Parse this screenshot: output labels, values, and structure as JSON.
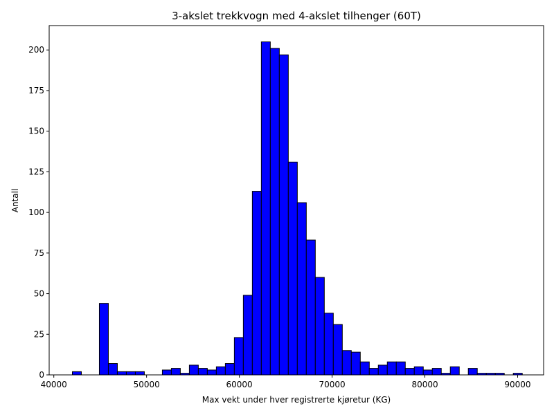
{
  "chart_data": {
    "type": "bar",
    "title": "3-akslet trekkvogn med 4-akslet tilhenger (60T)",
    "xlabel": "Max vekt under hver registrerte kjøretur (KG)",
    "ylabel": "Antall",
    "xlim": [
      39500,
      92800
    ],
    "ylim": [
      0,
      215
    ],
    "x_ticks": [
      40000,
      50000,
      60000,
      70000,
      80000,
      90000
    ],
    "y_ticks": [
      0,
      25,
      50,
      75,
      100,
      125,
      150,
      175,
      200
    ],
    "bin_width": 970,
    "bins_start": [
      42000,
      42970,
      43940,
      44910,
      45880,
      46850,
      47820,
      48790,
      49760,
      50730,
      51700,
      52670,
      53640,
      54610,
      55580,
      56550,
      57520,
      58490,
      59460,
      60430,
      61400,
      62370,
      63340,
      64310,
      65280,
      66250,
      67220,
      68190,
      69160,
      70130,
      71100,
      72070,
      73040,
      74010,
      74980,
      75950,
      76920,
      77890,
      78860,
      79830,
      80800,
      81770,
      82740,
      83710,
      84680,
      85650,
      86620,
      87590,
      88560,
      89530
    ],
    "values": [
      2,
      0,
      0,
      44,
      7,
      2,
      2,
      2,
      0,
      0,
      3,
      4,
      1,
      6,
      4,
      3,
      5,
      7,
      23,
      49,
      113,
      205,
      201,
      197,
      131,
      106,
      83,
      60,
      38,
      31,
      15,
      14,
      8,
      4,
      6,
      8,
      8,
      4,
      5,
      3,
      4,
      1,
      5,
      0,
      4,
      1,
      1,
      1,
      0,
      1
    ],
    "bar_color": "#0000ff",
    "edge_color": "#000000",
    "grid": false,
    "legend": "none"
  }
}
